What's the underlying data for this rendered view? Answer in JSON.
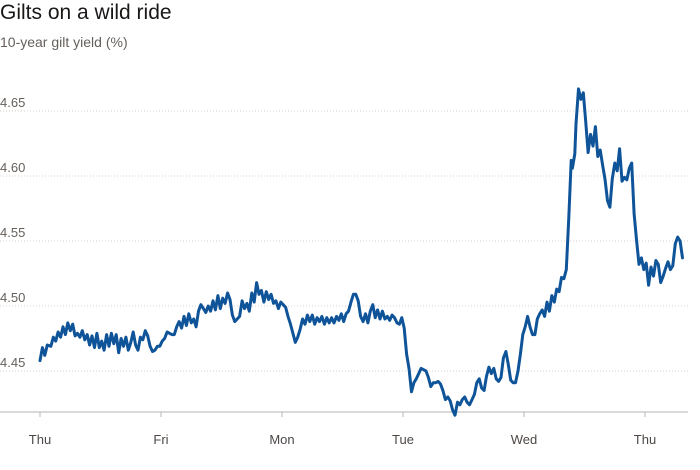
{
  "header": {
    "title": "Gilts on a wild ride",
    "subtitle": "10-year gilt yield (%)"
  },
  "colors": {
    "line": "#0f5499",
    "grid": "#d5d3d1",
    "axis": "#b8b5b3"
  },
  "chart_data": {
    "type": "line",
    "title": "Gilts on a wild ride",
    "subtitle": "10-year gilt yield (%)",
    "xlabel": "",
    "ylabel": "",
    "ylim": [
      4.415,
      4.675
    ],
    "yticks": [
      4.45,
      4.5,
      4.55,
      4.6,
      4.65
    ],
    "ytick_labels": [
      "4.45",
      "4.50",
      "4.55",
      "4.60",
      "4.65"
    ],
    "grid": "horizontal",
    "xlim": [
      0,
      5.55
    ],
    "xticks": [
      {
        "x": 0,
        "label": "Thu"
      },
      {
        "x": 1,
        "label": "Fri"
      },
      {
        "x": 2,
        "label": "Mon"
      },
      {
        "x": 3,
        "label": "Tue"
      },
      {
        "x": 4,
        "label": "Wed"
      },
      {
        "x": 5,
        "label": "Thu"
      }
    ],
    "series": [
      {
        "points": [
          [
            0.0,
            4.458
          ],
          [
            0.02,
            4.468
          ],
          [
            0.04,
            4.462
          ],
          [
            0.06,
            4.47
          ],
          [
            0.09,
            4.469
          ],
          [
            0.11,
            4.476
          ],
          [
            0.13,
            4.473
          ],
          [
            0.15,
            4.48
          ],
          [
            0.17,
            4.476
          ],
          [
            0.19,
            4.484
          ],
          [
            0.21,
            4.478
          ],
          [
            0.23,
            4.487
          ],
          [
            0.25,
            4.481
          ],
          [
            0.27,
            4.486
          ],
          [
            0.29,
            4.477
          ],
          [
            0.31,
            4.479
          ],
          [
            0.33,
            4.476
          ],
          [
            0.35,
            4.481
          ],
          [
            0.37,
            4.474
          ],
          [
            0.39,
            4.478
          ],
          [
            0.41,
            4.47
          ],
          [
            0.43,
            4.477
          ],
          [
            0.45,
            4.468
          ],
          [
            0.47,
            4.479
          ],
          [
            0.49,
            4.468
          ],
          [
            0.51,
            4.473
          ],
          [
            0.53,
            4.466
          ],
          [
            0.55,
            4.478
          ],
          [
            0.57,
            4.469
          ],
          [
            0.59,
            4.479
          ],
          [
            0.61,
            4.471
          ],
          [
            0.63,
            4.478
          ],
          [
            0.65,
            4.464
          ],
          [
            0.67,
            4.475
          ],
          [
            0.69,
            4.469
          ],
          [
            0.71,
            4.476
          ],
          [
            0.73,
            4.466
          ],
          [
            0.75,
            4.472
          ],
          [
            0.77,
            4.48
          ],
          [
            0.79,
            4.47
          ],
          [
            0.81,
            4.466
          ],
          [
            0.83,
            4.476
          ],
          [
            0.85,
            4.474
          ],
          [
            0.87,
            4.481
          ],
          [
            0.89,
            4.477
          ],
          [
            0.91,
            4.469
          ],
          [
            0.93,
            4.465
          ],
          [
            0.95,
            4.466
          ],
          [
            0.97,
            4.469
          ],
          [
            0.99,
            4.469
          ],
          [
            1.01,
            4.473
          ],
          [
            1.03,
            4.475
          ],
          [
            1.05,
            4.48
          ],
          [
            1.07,
            4.479
          ],
          [
            1.09,
            4.478
          ],
          [
            1.11,
            4.478
          ],
          [
            1.13,
            4.484
          ],
          [
            1.15,
            4.488
          ],
          [
            1.17,
            4.483
          ],
          [
            1.19,
            4.492
          ],
          [
            1.21,
            4.485
          ],
          [
            1.23,
            4.494
          ],
          [
            1.25,
            4.487
          ],
          [
            1.27,
            4.49
          ],
          [
            1.29,
            4.484
          ],
          [
            1.31,
            4.496
          ],
          [
            1.33,
            4.501
          ],
          [
            1.35,
            4.498
          ],
          [
            1.37,
            4.495
          ],
          [
            1.39,
            4.5
          ],
          [
            1.41,
            4.496
          ],
          [
            1.43,
            4.504
          ],
          [
            1.45,
            4.497
          ],
          [
            1.47,
            4.508
          ],
          [
            1.49,
            4.498
          ],
          [
            1.51,
            4.506
          ],
          [
            1.53,
            4.502
          ],
          [
            1.55,
            4.51
          ],
          [
            1.57,
            4.505
          ],
          [
            1.59,
            4.493
          ],
          [
            1.61,
            4.488
          ],
          [
            1.63,
            4.49
          ],
          [
            1.65,
            4.492
          ],
          [
            1.67,
            4.504
          ],
          [
            1.69,
            4.498
          ],
          [
            1.71,
            4.502
          ],
          [
            1.73,
            4.496
          ],
          [
            1.75,
            4.51
          ],
          [
            1.77,
            4.503
          ],
          [
            1.79,
            4.518
          ],
          [
            1.81,
            4.509
          ],
          [
            1.83,
            4.512
          ],
          [
            1.85,
            4.503
          ],
          [
            1.87,
            4.511
          ],
          [
            1.89,
            4.505
          ],
          [
            1.91,
            4.509
          ],
          [
            1.93,
            4.502
          ],
          [
            1.95,
            4.504
          ],
          [
            1.97,
            4.498
          ],
          [
            1.99,
            4.503
          ],
          [
            2.01,
            4.501
          ],
          [
            2.03,
            4.499
          ],
          [
            2.05,
            4.492
          ],
          [
            2.07,
            4.486
          ],
          [
            2.09,
            4.479
          ],
          [
            2.11,
            4.472
          ],
          [
            2.13,
            4.476
          ],
          [
            2.15,
            4.482
          ],
          [
            2.17,
            4.49
          ],
          [
            2.19,
            4.486
          ],
          [
            2.21,
            4.493
          ],
          [
            2.23,
            4.488
          ],
          [
            2.25,
            4.493
          ],
          [
            2.27,
            4.486
          ],
          [
            2.29,
            4.491
          ],
          [
            2.31,
            4.488
          ],
          [
            2.33,
            4.492
          ],
          [
            2.35,
            4.486
          ],
          [
            2.37,
            4.491
          ],
          [
            2.39,
            4.487
          ],
          [
            2.41,
            4.491
          ],
          [
            2.43,
            4.487
          ],
          [
            2.45,
            4.492
          ],
          [
            2.47,
            4.489
          ],
          [
            2.49,
            4.494
          ],
          [
            2.51,
            4.488
          ],
          [
            2.53,
            4.494
          ],
          [
            2.55,
            4.496
          ],
          [
            2.57,
            4.503
          ],
          [
            2.59,
            4.509
          ],
          [
            2.61,
            4.509
          ],
          [
            2.63,
            4.504
          ],
          [
            2.65,
            4.492
          ],
          [
            2.67,
            4.488
          ],
          [
            2.69,
            4.494
          ],
          [
            2.71,
            4.487
          ],
          [
            2.73,
            4.496
          ],
          [
            2.75,
            4.501
          ],
          [
            2.77,
            4.491
          ],
          [
            2.79,
            4.497
          ],
          [
            2.81,
            4.49
          ],
          [
            2.83,
            4.496
          ],
          [
            2.85,
            4.49
          ],
          [
            2.87,
            4.492
          ],
          [
            2.89,
            4.489
          ],
          [
            2.91,
            4.493
          ],
          [
            2.93,
            4.491
          ],
          [
            2.95,
            4.487
          ],
          [
            2.97,
            4.486
          ],
          [
            2.99,
            4.491
          ],
          [
            3.01,
            4.483
          ],
          [
            3.03,
            4.463
          ],
          [
            3.05,
            4.452
          ],
          [
            3.07,
            4.434
          ],
          [
            3.09,
            4.441
          ],
          [
            3.11,
            4.444
          ],
          [
            3.13,
            4.448
          ],
          [
            3.15,
            4.452
          ],
          [
            3.17,
            4.451
          ],
          [
            3.19,
            4.45
          ],
          [
            3.21,
            4.445
          ],
          [
            3.23,
            4.438
          ],
          [
            3.25,
            4.441
          ],
          [
            3.27,
            4.441
          ],
          [
            3.29,
            4.442
          ],
          [
            3.31,
            4.44
          ],
          [
            3.33,
            4.435
          ],
          [
            3.35,
            4.428
          ],
          [
            3.37,
            4.43
          ],
          [
            3.39,
            4.427
          ],
          [
            3.41,
            4.42
          ],
          [
            3.43,
            4.416
          ],
          [
            3.45,
            4.426
          ],
          [
            3.47,
            4.424
          ],
          [
            3.49,
            4.428
          ],
          [
            3.51,
            4.43
          ],
          [
            3.53,
            4.426
          ],
          [
            3.55,
            4.424
          ],
          [
            3.57,
            4.428
          ],
          [
            3.59,
            4.432
          ],
          [
            3.61,
            4.441
          ],
          [
            3.63,
            4.444
          ],
          [
            3.65,
            4.437
          ],
          [
            3.67,
            4.435
          ],
          [
            3.69,
            4.446
          ],
          [
            3.71,
            4.453
          ],
          [
            3.73,
            4.448
          ],
          [
            3.75,
            4.452
          ],
          [
            3.77,
            4.444
          ],
          [
            3.79,
            4.442
          ],
          [
            3.81,
            4.445
          ],
          [
            3.83,
            4.46
          ],
          [
            3.85,
            4.465
          ],
          [
            3.87,
            4.455
          ],
          [
            3.89,
            4.443
          ],
          [
            3.91,
            4.441
          ],
          [
            3.93,
            4.441
          ],
          [
            3.95,
            4.45
          ],
          [
            3.97,
            4.463
          ],
          [
            3.99,
            4.478
          ],
          [
            4.01,
            4.484
          ],
          [
            4.03,
            4.492
          ],
          [
            4.05,
            4.484
          ],
          [
            4.07,
            4.478
          ],
          [
            4.09,
            4.478
          ],
          [
            4.11,
            4.49
          ],
          [
            4.13,
            4.494
          ],
          [
            4.15,
            4.497
          ],
          [
            4.17,
            4.492
          ],
          [
            4.19,
            4.503
          ],
          [
            4.21,
            4.496
          ],
          [
            4.23,
            4.508
          ],
          [
            4.25,
            4.503
          ],
          [
            4.27,
            4.513
          ],
          [
            4.29,
            4.511
          ],
          [
            4.31,
            4.522
          ],
          [
            4.33,
            4.521
          ],
          [
            4.35,
            4.528
          ],
          [
            4.37,
            4.568
          ],
          [
            4.39,
            4.612
          ],
          [
            4.4,
            4.606
          ],
          [
            4.42,
            4.617
          ],
          [
            4.43,
            4.64
          ],
          [
            4.45,
            4.667
          ],
          [
            4.47,
            4.659
          ],
          [
            4.49,
            4.664
          ],
          [
            4.51,
            4.642
          ],
          [
            4.53,
            4.618
          ],
          [
            4.55,
            4.632
          ],
          [
            4.57,
            4.623
          ],
          [
            4.59,
            4.638
          ],
          [
            4.61,
            4.615
          ],
          [
            4.63,
            4.62
          ],
          [
            4.65,
            4.608
          ],
          [
            4.67,
            4.597
          ],
          [
            4.69,
            4.581
          ],
          [
            4.71,
            4.576
          ],
          [
            4.73,
            4.598
          ],
          [
            4.75,
            4.61
          ],
          [
            4.77,
            4.604
          ],
          [
            4.79,
            4.621
          ],
          [
            4.81,
            4.596
          ],
          [
            4.83,
            4.599
          ],
          [
            4.85,
            4.597
          ],
          [
            4.87,
            4.606
          ],
          [
            4.89,
            4.61
          ],
          [
            4.91,
            4.571
          ],
          [
            4.93,
            4.551
          ],
          [
            4.95,
            4.532
          ],
          [
            4.97,
            4.537
          ],
          [
            4.99,
            4.528
          ],
          [
            5.01,
            4.533
          ],
          [
            5.03,
            4.516
          ],
          [
            5.05,
            4.53
          ],
          [
            5.07,
            4.523
          ],
          [
            5.09,
            4.535
          ],
          [
            5.11,
            4.532
          ],
          [
            5.13,
            4.518
          ],
          [
            5.15,
            4.523
          ],
          [
            5.17,
            4.529
          ],
          [
            5.19,
            4.534
          ],
          [
            5.21,
            4.528
          ],
          [
            5.23,
            4.531
          ],
          [
            5.25,
            4.548
          ],
          [
            5.27,
            4.553
          ],
          [
            5.29,
            4.55
          ],
          [
            5.31,
            4.537
          ]
        ]
      }
    ]
  }
}
